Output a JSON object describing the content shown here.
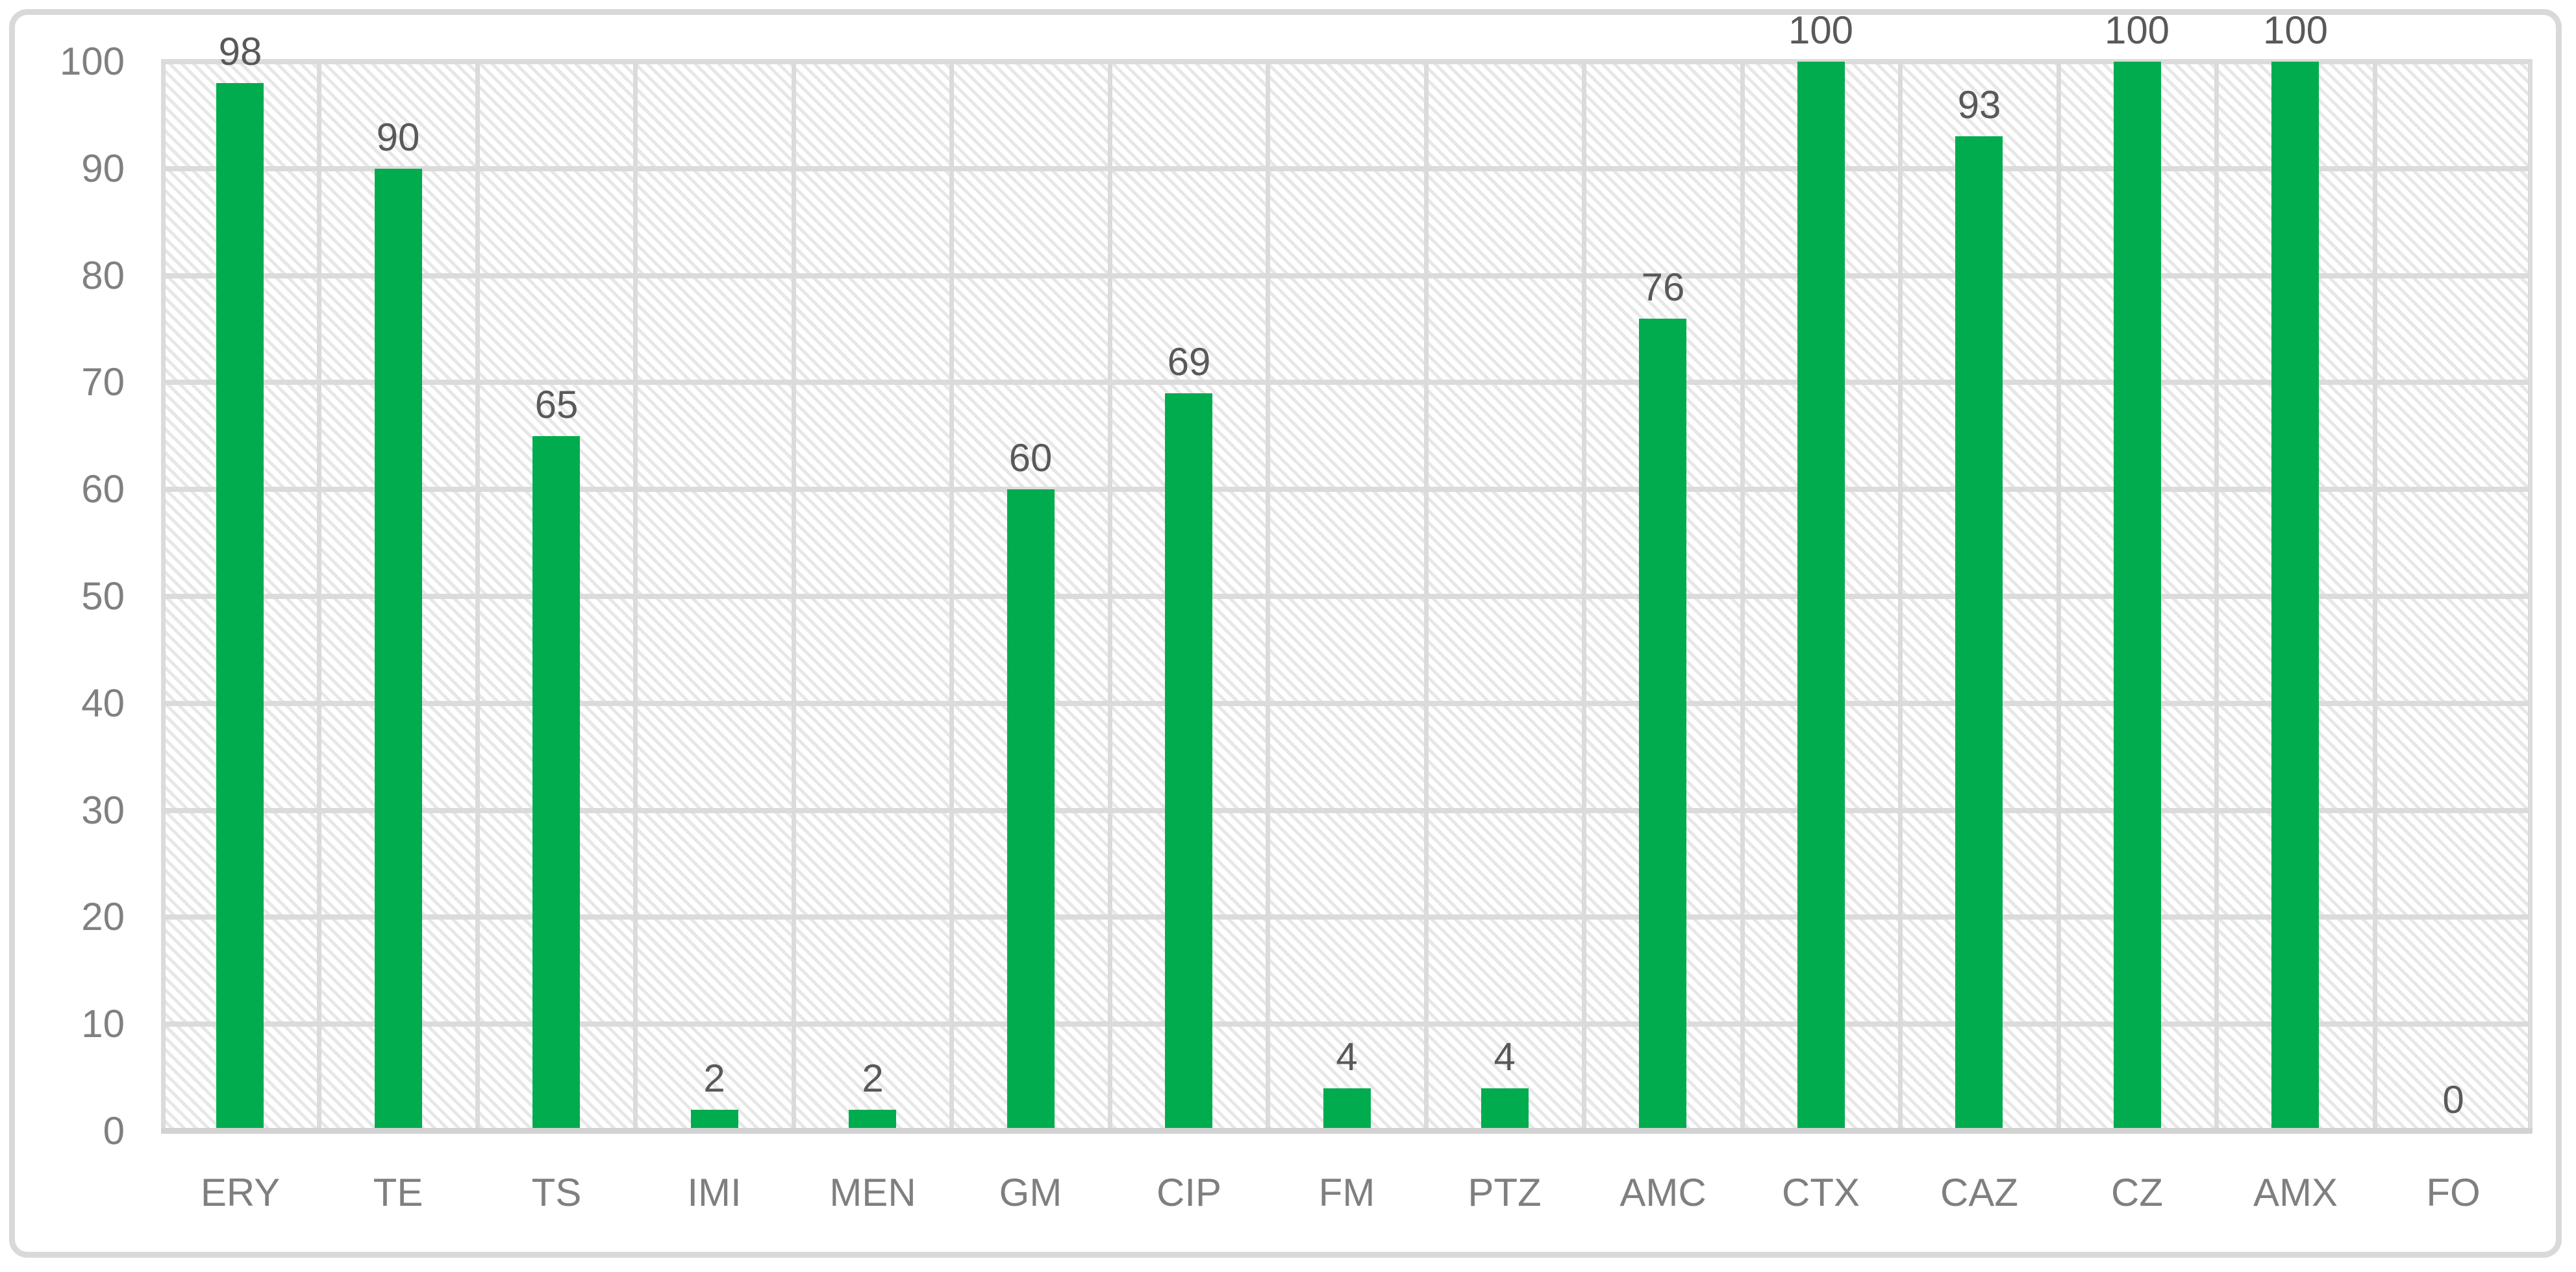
{
  "chart": {
    "background_color": "#FFFFFF",
    "frame_border_color": "#D9D9D9",
    "bar_color": "#00AC4E",
    "gridline_color": "#DBDBDB",
    "hatch_color": "#E7E7E7",
    "axis_tick_label_color": "#808080",
    "data_label_color": "#595959"
  },
  "chart_data": {
    "type": "bar",
    "title": "",
    "xlabel": "",
    "ylabel": "",
    "categories": [
      "ERY",
      "TE",
      "TS",
      "IMI",
      "MEN",
      "GM",
      "CIP",
      "FM",
      "PTZ",
      "AMC",
      "CTX",
      "CAZ",
      "CZ",
      "AMX",
      "FO"
    ],
    "values": [
      98,
      90,
      65,
      2,
      2,
      60,
      69,
      4,
      4,
      76,
      100,
      93,
      100,
      100,
      0
    ],
    "data_labels": [
      "98",
      "90",
      "65",
      "2",
      "2",
      "60",
      "69",
      "4",
      "4",
      "76",
      "100",
      "93",
      "100",
      "100",
      "0"
    ],
    "ylim": [
      0,
      100
    ],
    "ytick_step": 10,
    "yticks": [
      0,
      10,
      20,
      30,
      40,
      50,
      60,
      70,
      80,
      90,
      100
    ],
    "grid": true,
    "grid_horizontal": true,
    "grid_vertical": true,
    "legend": false,
    "plot_area_fill": "light-downward-diagonal-hatch",
    "bar_width_fraction": 0.3
  }
}
